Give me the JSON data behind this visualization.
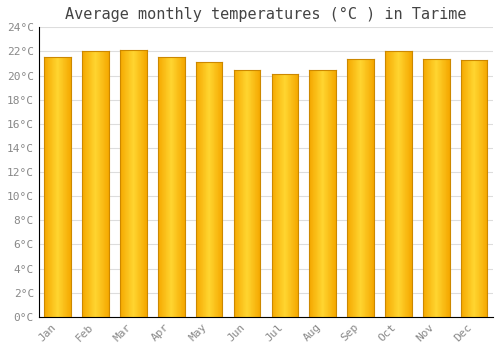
{
  "title": "Average monthly temperatures (°C ) in Tarime",
  "months": [
    "Jan",
    "Feb",
    "Mar",
    "Apr",
    "May",
    "Jun",
    "Jul",
    "Aug",
    "Sep",
    "Oct",
    "Nov",
    "Dec"
  ],
  "temperatures": [
    21.5,
    22.0,
    22.1,
    21.5,
    21.1,
    20.5,
    20.1,
    20.5,
    21.4,
    22.0,
    21.4,
    21.3
  ],
  "bar_color_left": "#F5A800",
  "bar_color_center": "#FFD040",
  "bar_color_right": "#F5A800",
  "bar_edge_color": "#CC8800",
  "background_color": "#FFFFFF",
  "plot_bg_color": "#FFFFFF",
  "grid_color": "#DDDDDD",
  "ylim": [
    0,
    24
  ],
  "yticks": [
    0,
    2,
    4,
    6,
    8,
    10,
    12,
    14,
    16,
    18,
    20,
    22,
    24
  ],
  "title_fontsize": 11,
  "tick_fontsize": 8,
  "figsize": [
    5.0,
    3.5
  ],
  "dpi": 100
}
